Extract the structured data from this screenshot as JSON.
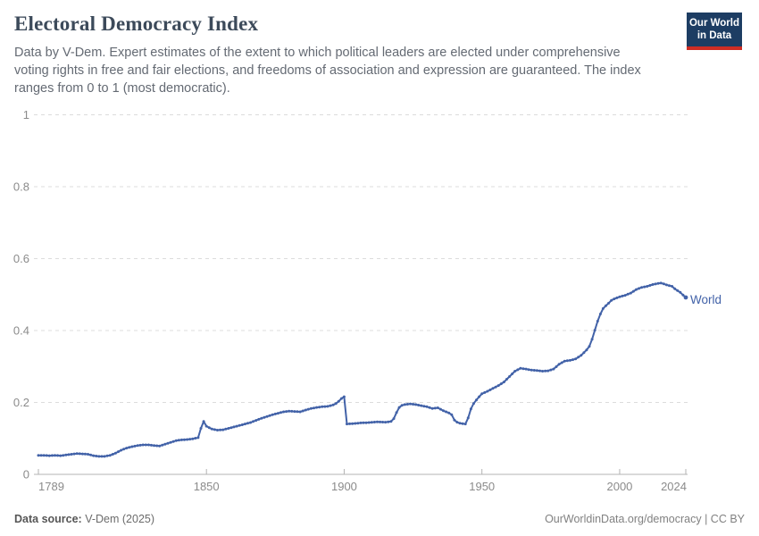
{
  "header": {
    "title": "Electoral Democracy Index",
    "subtitle": "Data by V-Dem. Expert estimates of the extent to which political leaders are elected under comprehensive\nvoting rights in free and fair elections, and freedoms of association and expression are guaranteed. The index\nranges from 0 to 1 (most democratic)."
  },
  "logo": {
    "line1": "Our World",
    "line2": "in Data",
    "bg_color": "#1d3d63",
    "bar_color": "#cf2d24"
  },
  "footer": {
    "source_label": "Data source:",
    "source_value": "V-Dem (2025)",
    "credit": "OurWorldinData.org/democracy | CC BY"
  },
  "chart_data": {
    "type": "line",
    "title": "Electoral Democracy Index",
    "xlabel": "",
    "ylabel": "",
    "xlim": [
      1789,
      2024
    ],
    "ylim": [
      0,
      1
    ],
    "x_ticks": [
      1789,
      1850,
      1900,
      1950,
      2000,
      2024
    ],
    "y_ticks": [
      0,
      0.2,
      0.4,
      0.6,
      0.8,
      1
    ],
    "grid": "dashed-horizontal",
    "legend": "end-of-line-label",
    "colors": {
      "line": "#4262a8",
      "series_label": "#4262a8",
      "tick_text": "#8b8b8b",
      "gridline": "#dcdcdc",
      "axis": "#b3b3b3"
    },
    "series": [
      {
        "name": "World",
        "points": [
          [
            1789,
            0.053
          ],
          [
            1791,
            0.053
          ],
          [
            1793,
            0.052
          ],
          [
            1795,
            0.053
          ],
          [
            1797,
            0.052
          ],
          [
            1799,
            0.054
          ],
          [
            1801,
            0.056
          ],
          [
            1803,
            0.058
          ],
          [
            1805,
            0.057
          ],
          [
            1807,
            0.056
          ],
          [
            1809,
            0.052
          ],
          [
            1811,
            0.05
          ],
          [
            1813,
            0.05
          ],
          [
            1815,
            0.053
          ],
          [
            1817,
            0.059
          ],
          [
            1819,
            0.067
          ],
          [
            1821,
            0.073
          ],
          [
            1823,
            0.077
          ],
          [
            1825,
            0.08
          ],
          [
            1827,
            0.082
          ],
          [
            1829,
            0.082
          ],
          [
            1831,
            0.08
          ],
          [
            1833,
            0.079
          ],
          [
            1835,
            0.084
          ],
          [
            1837,
            0.089
          ],
          [
            1839,
            0.094
          ],
          [
            1841,
            0.096
          ],
          [
            1843,
            0.097
          ],
          [
            1845,
            0.099
          ],
          [
            1847,
            0.102
          ],
          [
            1848,
            0.128
          ],
          [
            1849,
            0.147
          ],
          [
            1850,
            0.134
          ],
          [
            1852,
            0.126
          ],
          [
            1854,
            0.123
          ],
          [
            1856,
            0.124
          ],
          [
            1858,
            0.128
          ],
          [
            1860,
            0.132
          ],
          [
            1862,
            0.136
          ],
          [
            1864,
            0.14
          ],
          [
            1866,
            0.144
          ],
          [
            1868,
            0.15
          ],
          [
            1870,
            0.156
          ],
          [
            1872,
            0.161
          ],
          [
            1874,
            0.166
          ],
          [
            1876,
            0.17
          ],
          [
            1878,
            0.174
          ],
          [
            1880,
            0.176
          ],
          [
            1882,
            0.175
          ],
          [
            1884,
            0.174
          ],
          [
            1886,
            0.179
          ],
          [
            1888,
            0.183
          ],
          [
            1890,
            0.186
          ],
          [
            1892,
            0.188
          ],
          [
            1894,
            0.189
          ],
          [
            1896,
            0.193
          ],
          [
            1897,
            0.197
          ],
          [
            1898,
            0.203
          ],
          [
            1899,
            0.211
          ],
          [
            1900,
            0.216
          ],
          [
            1901,
            0.14
          ],
          [
            1903,
            0.141
          ],
          [
            1906,
            0.143
          ],
          [
            1909,
            0.144
          ],
          [
            1912,
            0.146
          ],
          [
            1915,
            0.145
          ],
          [
            1917,
            0.147
          ],
          [
            1918,
            0.155
          ],
          [
            1919,
            0.172
          ],
          [
            1920,
            0.186
          ],
          [
            1921,
            0.192
          ],
          [
            1922,
            0.194
          ],
          [
            1924,
            0.196
          ],
          [
            1926,
            0.194
          ],
          [
            1928,
            0.191
          ],
          [
            1930,
            0.188
          ],
          [
            1932,
            0.183
          ],
          [
            1934,
            0.185
          ],
          [
            1936,
            0.177
          ],
          [
            1938,
            0.171
          ],
          [
            1939,
            0.166
          ],
          [
            1940,
            0.151
          ],
          [
            1941,
            0.145
          ],
          [
            1942,
            0.142
          ],
          [
            1943,
            0.141
          ],
          [
            1944,
            0.14
          ],
          [
            1945,
            0.157
          ],
          [
            1946,
            0.182
          ],
          [
            1947,
            0.197
          ],
          [
            1948,
            0.207
          ],
          [
            1949,
            0.216
          ],
          [
            1950,
            0.224
          ],
          [
            1952,
            0.231
          ],
          [
            1954,
            0.239
          ],
          [
            1956,
            0.247
          ],
          [
            1958,
            0.257
          ],
          [
            1960,
            0.272
          ],
          [
            1962,
            0.287
          ],
          [
            1964,
            0.295
          ],
          [
            1966,
            0.293
          ],
          [
            1968,
            0.29
          ],
          [
            1970,
            0.289
          ],
          [
            1972,
            0.287
          ],
          [
            1974,
            0.288
          ],
          [
            1976,
            0.293
          ],
          [
            1978,
            0.306
          ],
          [
            1980,
            0.315
          ],
          [
            1982,
            0.317
          ],
          [
            1984,
            0.321
          ],
          [
            1986,
            0.331
          ],
          [
            1988,
            0.346
          ],
          [
            1989,
            0.356
          ],
          [
            1990,
            0.376
          ],
          [
            1991,
            0.401
          ],
          [
            1992,
            0.426
          ],
          [
            1993,
            0.446
          ],
          [
            1994,
            0.461
          ],
          [
            1995,
            0.469
          ],
          [
            1996,
            0.476
          ],
          [
            1997,
            0.484
          ],
          [
            1998,
            0.488
          ],
          [
            1999,
            0.491
          ],
          [
            2000,
            0.494
          ],
          [
            2002,
            0.498
          ],
          [
            2004,
            0.504
          ],
          [
            2006,
            0.514
          ],
          [
            2008,
            0.52
          ],
          [
            2010,
            0.523
          ],
          [
            2012,
            0.528
          ],
          [
            2014,
            0.531
          ],
          [
            2015,
            0.532
          ],
          [
            2016,
            0.53
          ],
          [
            2017,
            0.527
          ],
          [
            2018,
            0.525
          ],
          [
            2019,
            0.523
          ],
          [
            2020,
            0.516
          ],
          [
            2021,
            0.511
          ],
          [
            2022,
            0.506
          ],
          [
            2023,
            0.499
          ],
          [
            2024,
            0.492
          ]
        ]
      }
    ]
  }
}
